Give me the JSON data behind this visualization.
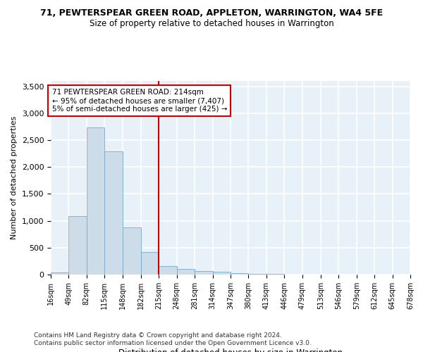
{
  "title": "71, PEWTERSPEAR GREEN ROAD, APPLETON, WARRINGTON, WA4 5FE",
  "subtitle": "Size of property relative to detached houses in Warrington",
  "xlabel": "Distribution of detached houses by size in Warrington",
  "ylabel": "Number of detached properties",
  "bar_color": "#ccdce8",
  "bar_edge_color": "#7aaac8",
  "vline_x": 215,
  "vline_color": "#cc0000",
  "annotation_text": "71 PEWTERSPEAR GREEN ROAD: 214sqm\n← 95% of detached houses are smaller (7,407)\n5% of semi-detached houses are larger (425) →",
  "annotation_box_color": "#ffffff",
  "annotation_box_edge": "#cc0000",
  "bin_edges": [
    16,
    49,
    82,
    115,
    148,
    182,
    215,
    248,
    281,
    314,
    347,
    380,
    413,
    446,
    479,
    513,
    546,
    579,
    612,
    645,
    678
  ],
  "bin_values": [
    45,
    1090,
    2730,
    2290,
    880,
    415,
    155,
    100,
    62,
    48,
    28,
    18,
    9,
    4,
    2,
    1,
    1,
    0,
    0,
    0
  ],
  "ylim": [
    0,
    3600
  ],
  "yticks": [
    0,
    500,
    1000,
    1500,
    2000,
    2500,
    3000,
    3500
  ],
  "background_color": "#e8f0f8",
  "grid_color": "#ffffff",
  "footer1": "Contains HM Land Registry data © Crown copyright and database right 2024.",
  "footer2": "Contains public sector information licensed under the Open Government Licence v3.0."
}
